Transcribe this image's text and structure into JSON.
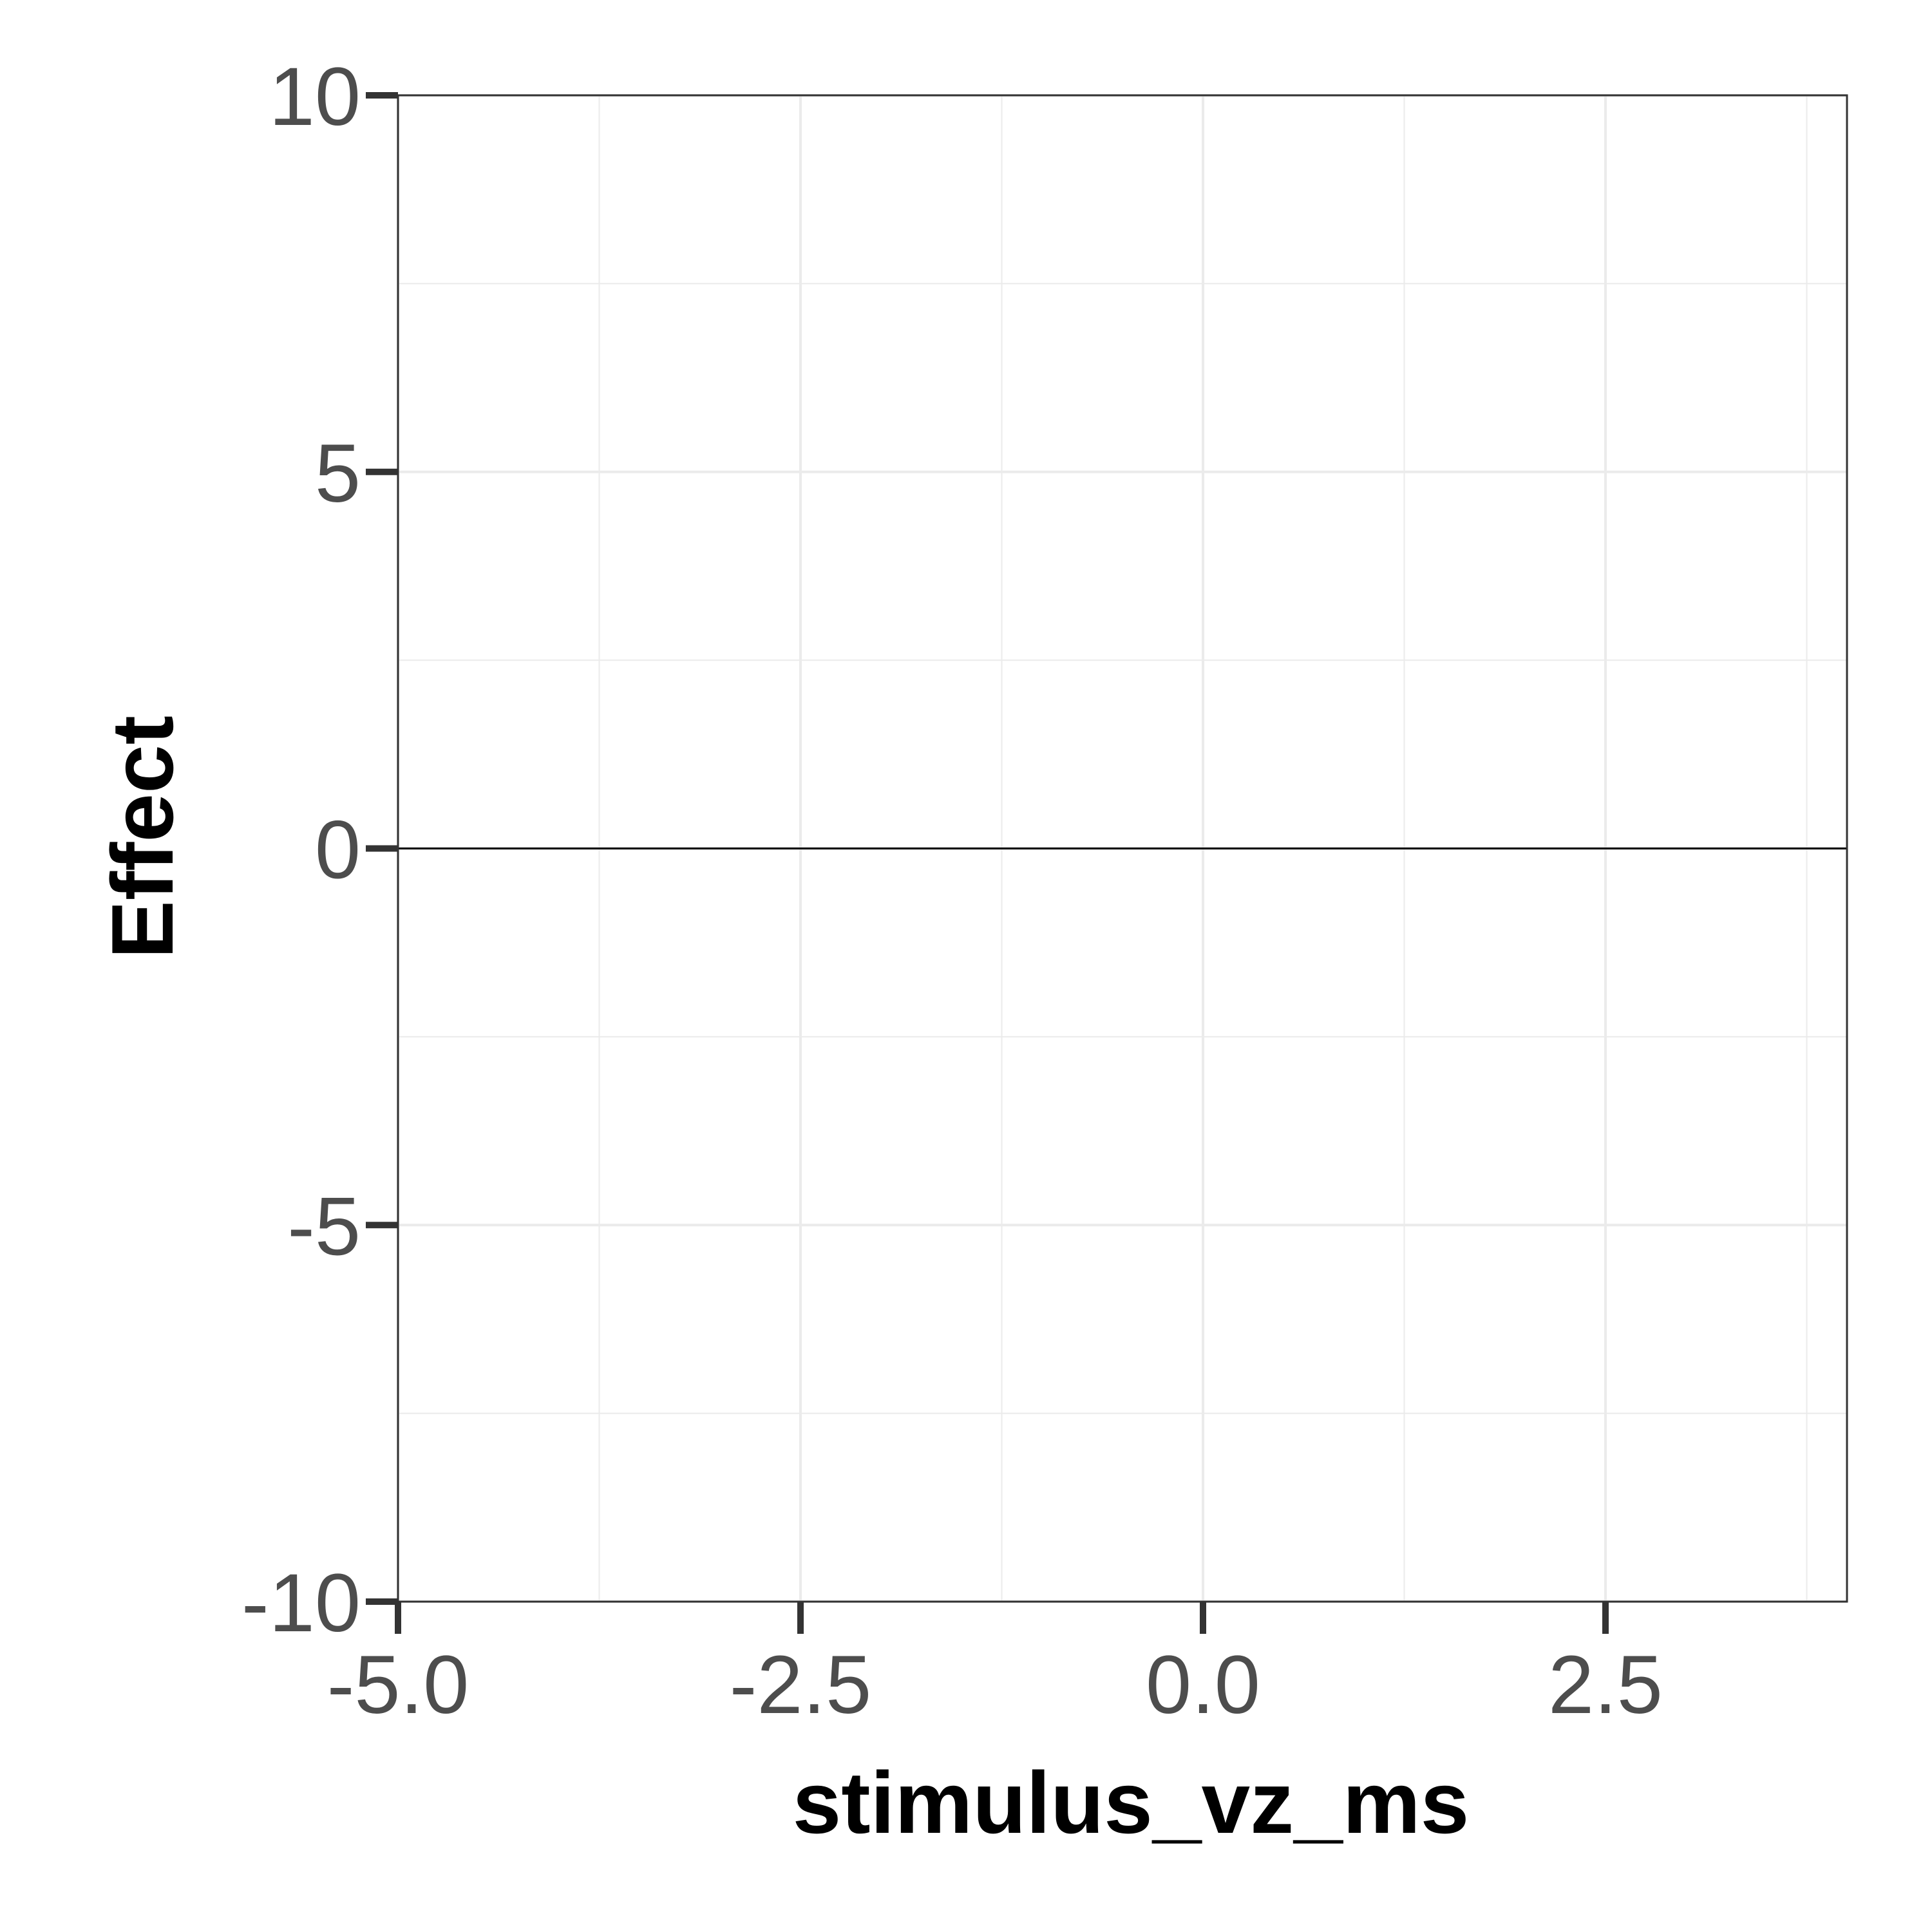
{
  "chart_data": {
    "type": "line",
    "title": "",
    "xlabel": "stimulus_vz_ms",
    "ylabel": "Effect",
    "xlim": [
      -5.0,
      4.0
    ],
    "ylim": [
      -10,
      10
    ],
    "x_ticks": [
      -5.0,
      -2.5,
      0.0,
      2.5
    ],
    "x_tick_labels": [
      "-5.0",
      "-2.5",
      "0.0",
      "2.5"
    ],
    "x_minor_ticks": [
      -3.75,
      -1.25,
      1.25,
      3.75
    ],
    "y_ticks": [
      -10,
      -5,
      0,
      5,
      10
    ],
    "y_tick_labels": [
      "-10",
      "-5",
      "0",
      "5",
      "10"
    ],
    "y_minor_ticks": [
      -7.5,
      -2.5,
      2.5,
      7.5
    ],
    "grid": true,
    "legend": "none",
    "reference_line": {
      "y": 0,
      "color": "#000000"
    },
    "series": [],
    "colors": {
      "grid": "#ebebeb",
      "panel_border": "#333333",
      "tick": "#333333",
      "tick_label": "#4d4d4d"
    }
  }
}
